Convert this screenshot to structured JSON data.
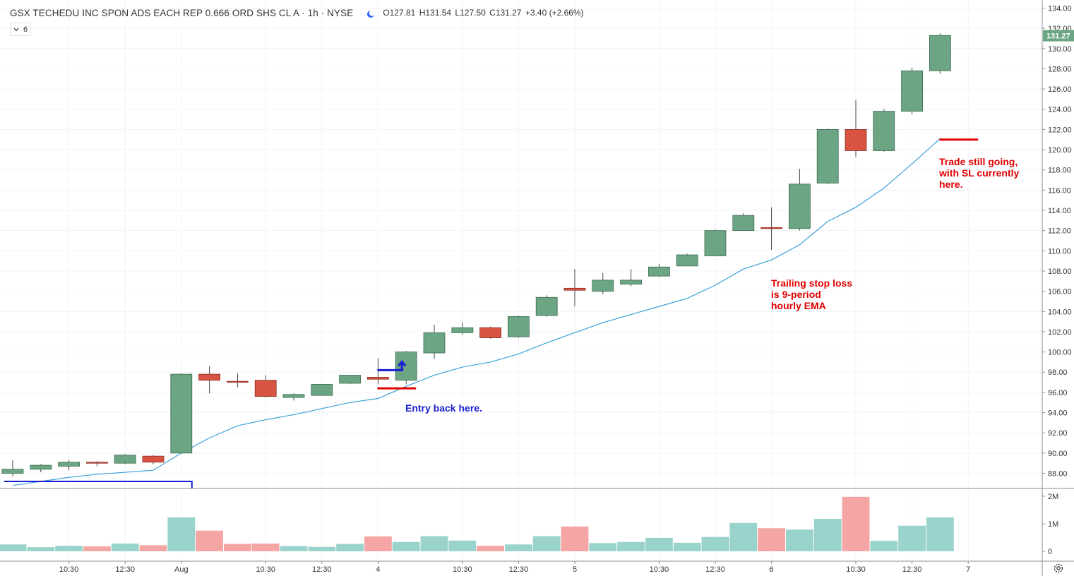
{
  "header": {
    "title": "GSX TECHEDU INC SPON ADS EACH REP 0.666 ORD SHS CL A · 1h · NYSE",
    "open": "O127.81",
    "high": "H131.54",
    "low": "L127.50",
    "close": "C131.27",
    "change": "+3.40 (+2.66%)"
  },
  "indicator": {
    "value": "6",
    "toggle_icon": "chevron-down-icon"
  },
  "annotations": {
    "entry": "Entry back here.",
    "trailing": "Trailing stop loss\nis 9-period\nhourly EMA",
    "trade": "Trade still going,\nwith SL currently\nhere."
  },
  "price_axis": {
    "labels": [
      "88.00",
      "90.00",
      "92.00",
      "94.00",
      "96.00",
      "98.00",
      "100.00",
      "102.00",
      "104.00",
      "106.00",
      "108.00",
      "110.00",
      "112.00",
      "114.00",
      "116.00",
      "118.00",
      "120.00",
      "122.00",
      "124.00",
      "126.00",
      "128.00",
      "130.00",
      "132.00",
      "134.00"
    ],
    "last_price": "131.27"
  },
  "volume_axis": {
    "labels": [
      "2M",
      "1M",
      "0"
    ]
  },
  "time_axis": {
    "labels": [
      {
        "text": "10:30",
        "i": 2
      },
      {
        "text": "12:30",
        "i": 4
      },
      {
        "text": "Aug",
        "i": 6
      },
      {
        "text": "10:30",
        "i": 9
      },
      {
        "text": "12:30",
        "i": 11
      },
      {
        "text": "4",
        "i": 13
      },
      {
        "text": "10:30",
        "i": 16
      },
      {
        "text": "12:30",
        "i": 18
      },
      {
        "text": "5",
        "i": 20
      },
      {
        "text": "10:30",
        "i": 23
      },
      {
        "text": "12:30",
        "i": 25
      },
      {
        "text": "6",
        "i": 27
      },
      {
        "text": "10:30",
        "i": 30
      },
      {
        "text": "12:30",
        "i": 32
      },
      {
        "text": "7",
        "i": 34
      }
    ]
  },
  "colors": {
    "up": "#6ba583",
    "down": "#d75442",
    "up_vol": "#9ad3cc",
    "down_vol": "#f5a6a4",
    "ema": "#3ba0d9",
    "stop": "#e00000",
    "entry": "#1a1fd0",
    "grid": "#f0f3fa"
  },
  "chart_data": {
    "type": "candlestick",
    "interval": "1h",
    "ylim": [
      86.5,
      134.8
    ],
    "candles": [
      {
        "o": 88.0,
        "h": 89.3,
        "l": 87.7,
        "c": 88.4
      },
      {
        "o": 88.4,
        "h": 88.9,
        "l": 88.1,
        "c": 88.8
      },
      {
        "o": 88.7,
        "h": 89.3,
        "l": 88.3,
        "c": 89.1
      },
      {
        "o": 89.1,
        "h": 89.2,
        "l": 88.7,
        "c": 89.0
      },
      {
        "o": 89.0,
        "h": 89.9,
        "l": 88.9,
        "c": 89.8
      },
      {
        "o": 89.7,
        "h": 89.8,
        "l": 88.9,
        "c": 89.1
      },
      {
        "o": 90.0,
        "h": 97.9,
        "l": 90.0,
        "c": 97.8
      },
      {
        "o": 97.8,
        "h": 98.6,
        "l": 95.9,
        "c": 97.2
      },
      {
        "o": 97.1,
        "h": 97.9,
        "l": 96.5,
        "c": 97.0
      },
      {
        "o": 97.2,
        "h": 97.7,
        "l": 95.5,
        "c": 95.6
      },
      {
        "o": 95.5,
        "h": 95.9,
        "l": 95.2,
        "c": 95.8
      },
      {
        "o": 95.7,
        "h": 96.8,
        "l": 95.7,
        "c": 96.8
      },
      {
        "o": 96.9,
        "h": 97.7,
        "l": 96.8,
        "c": 97.7
      },
      {
        "o": 97.5,
        "h": 99.4,
        "l": 96.8,
        "c": 97.3
      },
      {
        "o": 97.2,
        "h": 100.1,
        "l": 96.8,
        "c": 100.0
      },
      {
        "o": 99.9,
        "h": 102.7,
        "l": 99.3,
        "c": 101.9
      },
      {
        "o": 101.9,
        "h": 102.9,
        "l": 101.7,
        "c": 102.4
      },
      {
        "o": 102.4,
        "h": 102.5,
        "l": 101.3,
        "c": 101.4
      },
      {
        "o": 101.5,
        "h": 103.6,
        "l": 101.4,
        "c": 103.5
      },
      {
        "o": 103.6,
        "h": 105.6,
        "l": 103.5,
        "c": 105.4
      },
      {
        "o": 106.3,
        "h": 108.2,
        "l": 104.5,
        "c": 106.1
      },
      {
        "o": 106.0,
        "h": 107.8,
        "l": 105.7,
        "c": 107.1
      },
      {
        "o": 106.7,
        "h": 108.2,
        "l": 106.5,
        "c": 107.1
      },
      {
        "o": 107.5,
        "h": 108.7,
        "l": 107.4,
        "c": 108.4
      },
      {
        "o": 108.5,
        "h": 109.7,
        "l": 108.5,
        "c": 109.6
      },
      {
        "o": 109.5,
        "h": 112.1,
        "l": 109.5,
        "c": 112.0
      },
      {
        "o": 112.0,
        "h": 113.7,
        "l": 112.0,
        "c": 113.5
      },
      {
        "o": 112.3,
        "h": 114.3,
        "l": 110.1,
        "c": 112.2
      },
      {
        "o": 112.2,
        "h": 118.1,
        "l": 112.0,
        "c": 116.6
      },
      {
        "o": 116.7,
        "h": 122.1,
        "l": 116.6,
        "c": 122.0
      },
      {
        "o": 122.0,
        "h": 124.9,
        "l": 119.3,
        "c": 119.9
      },
      {
        "o": 119.9,
        "h": 124.0,
        "l": 119.8,
        "c": 123.8
      },
      {
        "o": 123.8,
        "h": 128.1,
        "l": 123.5,
        "c": 127.8
      },
      {
        "o": 127.8,
        "h": 131.5,
        "l": 127.5,
        "c": 131.3
      }
    ],
    "volume_max": 2000000,
    "volume": [
      250000,
      150000,
      200000,
      180000,
      280000,
      220000,
      1230000,
      750000,
      270000,
      280000,
      190000,
      160000,
      270000,
      540000,
      340000,
      550000,
      390000,
      200000,
      250000,
      550000,
      900000,
      300000,
      340000,
      490000,
      310000,
      520000,
      1030000,
      840000,
      790000,
      1180000,
      1980000,
      380000,
      930000,
      1230000
    ],
    "ema9": [
      86.8,
      87.2,
      87.6,
      87.9,
      88.1,
      88.3,
      90.0,
      91.5,
      92.7,
      93.3,
      93.8,
      94.4,
      95.0,
      95.4,
      96.6,
      97.7,
      98.5,
      99.0,
      99.8,
      100.9,
      101.9,
      102.9,
      103.7,
      104.5,
      105.3,
      106.6,
      108.2,
      109.1,
      110.6,
      112.9,
      114.3,
      116.2,
      118.6,
      121.1
    ],
    "markers": [
      {
        "type": "entry-level",
        "color": "#1a1fd0",
        "start": 13,
        "end": 14,
        "price": 98.2
      },
      {
        "type": "stop-level",
        "color": "#e00000",
        "start": 13,
        "end": 14,
        "price": 96.4
      },
      {
        "type": "stop-level",
        "color": "#e00000",
        "start": 33,
        "end": 34,
        "price": 121.0
      },
      {
        "type": "range-box",
        "color": "#1a1fd0",
        "start": 0,
        "end": 6,
        "price": 87.2
      }
    ]
  }
}
